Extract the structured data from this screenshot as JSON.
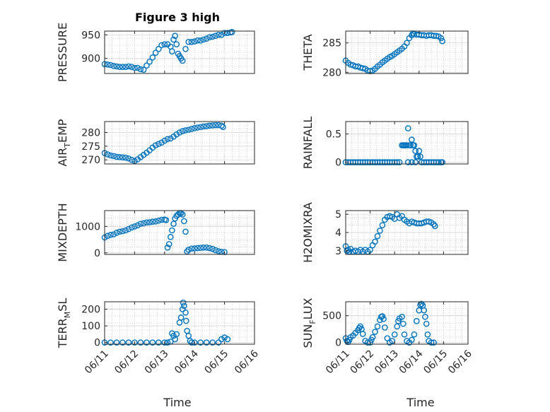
{
  "title": "Figure 3 high",
  "xlabel": "Time",
  "x_ticks": [
    "06/11",
    "06/12",
    "06/13",
    "06/14",
    "06/15",
    "06/16"
  ],
  "colors": {
    "marker": "#0072BD",
    "axis": "#262626",
    "grid": "#b0b0b0"
  },
  "chart_data": [
    {
      "type": "scatter",
      "ylabel": "PRESSURE",
      "ylim": [
        868,
        958
      ],
      "yticks": [
        900,
        950
      ],
      "points": [
        [
          0.0,
          888
        ],
        [
          0.1,
          887
        ],
        [
          0.2,
          886
        ],
        [
          0.3,
          884
        ],
        [
          0.4,
          883
        ],
        [
          0.5,
          882
        ],
        [
          0.6,
          882
        ],
        [
          0.7,
          882
        ],
        [
          0.8,
          883
        ],
        [
          0.9,
          882
        ],
        [
          1.0,
          880
        ],
        [
          1.1,
          880
        ],
        [
          1.2,
          877
        ],
        [
          1.3,
          876
        ],
        [
          1.4,
          885
        ],
        [
          1.5,
          893
        ],
        [
          1.6,
          902
        ],
        [
          1.7,
          912
        ],
        [
          1.8,
          920
        ],
        [
          1.9,
          928
        ],
        [
          2.0,
          930
        ],
        [
          2.1,
          930
        ],
        [
          2.2,
          925
        ],
        [
          2.25,
          915
        ],
        [
          2.3,
          940
        ],
        [
          2.35,
          948
        ],
        [
          2.4,
          930
        ],
        [
          2.45,
          910
        ],
        [
          2.5,
          905
        ],
        [
          2.55,
          900
        ],
        [
          2.6,
          895
        ],
        [
          2.7,
          920
        ],
        [
          2.8,
          935
        ],
        [
          2.9,
          935
        ],
        [
          3.0,
          936
        ],
        [
          3.1,
          938
        ],
        [
          3.2,
          938
        ],
        [
          3.3,
          940
        ],
        [
          3.4,
          942
        ],
        [
          3.5,
          945
        ],
        [
          3.6,
          946
        ],
        [
          3.7,
          948
        ],
        [
          3.8,
          950
        ],
        [
          3.9,
          950
        ],
        [
          4.0,
          954
        ],
        [
          4.1,
          954
        ],
        [
          4.2,
          955
        ],
        [
          4.25,
          956
        ]
      ]
    },
    {
      "type": "scatter",
      "ylabel": "THETA",
      "ylim": [
        279.8,
        287
      ],
      "yticks": [
        280,
        285
      ],
      "points": [
        [
          0.0,
          282.0
        ],
        [
          0.1,
          281.6
        ],
        [
          0.2,
          281.3
        ],
        [
          0.3,
          281.2
        ],
        [
          0.4,
          281.0
        ],
        [
          0.5,
          281.0
        ],
        [
          0.6,
          280.8
        ],
        [
          0.7,
          280.7
        ],
        [
          0.8,
          280.6
        ],
        [
          0.9,
          280.3
        ],
        [
          1.0,
          280.2
        ],
        [
          1.1,
          280.3
        ],
        [
          1.2,
          280.6
        ],
        [
          1.3,
          281.0
        ],
        [
          1.4,
          281.3
        ],
        [
          1.5,
          281.7
        ],
        [
          1.6,
          282.0
        ],
        [
          1.7,
          282.3
        ],
        [
          1.8,
          282.6
        ],
        [
          1.9,
          282.8
        ],
        [
          2.0,
          283.1
        ],
        [
          2.1,
          283.4
        ],
        [
          2.2,
          283.7
        ],
        [
          2.3,
          284.0
        ],
        [
          2.4,
          284.4
        ],
        [
          2.5,
          285.0
        ],
        [
          2.6,
          285.8
        ],
        [
          2.7,
          286.3
        ],
        [
          2.75,
          286.6
        ],
        [
          2.8,
          286.5
        ],
        [
          2.9,
          286.4
        ],
        [
          3.0,
          286.4
        ],
        [
          3.1,
          286.3
        ],
        [
          3.2,
          286.3
        ],
        [
          3.3,
          286.2
        ],
        [
          3.4,
          286.3
        ],
        [
          3.5,
          286.3
        ],
        [
          3.6,
          286.2
        ],
        [
          3.7,
          286.2
        ],
        [
          3.8,
          286.1
        ],
        [
          3.9,
          285.8
        ],
        [
          3.95,
          285.3
        ]
      ]
    },
    {
      "type": "scatter",
      "ylabel": "AIR_TEMP",
      "ylim": [
        268.5,
        284
      ],
      "yticks": [
        270,
        275,
        280
      ],
      "points": [
        [
          0.0,
          272.5
        ],
        [
          0.1,
          272.0
        ],
        [
          0.2,
          271.6
        ],
        [
          0.3,
          271.4
        ],
        [
          0.4,
          271.1
        ],
        [
          0.5,
          271.0
        ],
        [
          0.6,
          270.9
        ],
        [
          0.7,
          270.8
        ],
        [
          0.8,
          270.5
        ],
        [
          0.9,
          270.0
        ],
        [
          1.0,
          269.6
        ],
        [
          1.1,
          270.2
        ],
        [
          1.2,
          271.0
        ],
        [
          1.3,
          271.8
        ],
        [
          1.4,
          272.6
        ],
        [
          1.5,
          273.5
        ],
        [
          1.6,
          274.5
        ],
        [
          1.7,
          275.3
        ],
        [
          1.8,
          275.8
        ],
        [
          1.9,
          276.3
        ],
        [
          2.0,
          277.0
        ],
        [
          2.1,
          277.6
        ],
        [
          2.2,
          277.8
        ],
        [
          2.3,
          278.5
        ],
        [
          2.4,
          279.3
        ],
        [
          2.5,
          280.0
        ],
        [
          2.6,
          280.5
        ],
        [
          2.7,
          280.8
        ],
        [
          2.8,
          281.0
        ],
        [
          2.9,
          281.3
        ],
        [
          3.0,
          281.6
        ],
        [
          3.1,
          281.8
        ],
        [
          3.2,
          282.0
        ],
        [
          3.3,
          282.2
        ],
        [
          3.4,
          282.3
        ],
        [
          3.5,
          282.5
        ],
        [
          3.6,
          282.6
        ],
        [
          3.7,
          282.7
        ],
        [
          3.8,
          282.7
        ],
        [
          3.9,
          282.5
        ],
        [
          3.95,
          282.0
        ]
      ]
    },
    {
      "type": "scatter",
      "ylabel": "RAINFALL",
      "ylim": [
        -0.03,
        0.72
      ],
      "yticks": [
        0,
        0.5
      ],
      "points": [
        [
          0.0,
          0
        ],
        [
          0.1,
          0
        ],
        [
          0.2,
          0
        ],
        [
          0.3,
          0
        ],
        [
          0.4,
          0
        ],
        [
          0.5,
          0
        ],
        [
          0.6,
          0
        ],
        [
          0.7,
          0
        ],
        [
          0.8,
          0
        ],
        [
          0.9,
          0
        ],
        [
          1.0,
          0
        ],
        [
          1.1,
          0
        ],
        [
          1.2,
          0
        ],
        [
          1.3,
          0
        ],
        [
          1.4,
          0
        ],
        [
          1.5,
          0
        ],
        [
          1.6,
          0
        ],
        [
          1.7,
          0
        ],
        [
          1.8,
          0
        ],
        [
          1.9,
          0
        ],
        [
          2.0,
          0
        ],
        [
          2.1,
          0
        ],
        [
          2.2,
          0
        ],
        [
          2.3,
          0.3
        ],
        [
          2.35,
          0.3
        ],
        [
          2.4,
          0.3
        ],
        [
          2.45,
          0.3
        ],
        [
          2.5,
          0.3
        ],
        [
          2.55,
          0.6
        ],
        [
          2.6,
          0.3
        ],
        [
          2.65,
          0.3
        ],
        [
          2.7,
          0.4
        ],
        [
          2.75,
          0.3
        ],
        [
          2.8,
          0.3
        ],
        [
          2.85,
          0.2
        ],
        [
          2.9,
          0.1
        ],
        [
          2.95,
          0.1
        ],
        [
          3.0,
          0.2
        ],
        [
          3.05,
          0.1
        ],
        [
          3.1,
          0
        ],
        [
          2.55,
          0
        ],
        [
          2.7,
          0
        ],
        [
          2.85,
          0
        ],
        [
          3.2,
          0
        ],
        [
          3.3,
          0
        ],
        [
          3.4,
          0
        ],
        [
          3.5,
          0
        ],
        [
          3.6,
          0
        ],
        [
          3.7,
          0
        ],
        [
          3.8,
          0
        ],
        [
          3.9,
          0
        ],
        [
          3.95,
          0
        ]
      ]
    },
    {
      "type": "scatter",
      "ylabel": "MIXDEPTH",
      "ylim": [
        -60,
        1600
      ],
      "yticks": [
        0,
        1000
      ],
      "points": [
        [
          0.0,
          580
        ],
        [
          0.1,
          640
        ],
        [
          0.2,
          680
        ],
        [
          0.3,
          700
        ],
        [
          0.4,
          760
        ],
        [
          0.5,
          800
        ],
        [
          0.6,
          820
        ],
        [
          0.7,
          850
        ],
        [
          0.8,
          900
        ],
        [
          0.9,
          960
        ],
        [
          1.0,
          1000
        ],
        [
          1.1,
          1040
        ],
        [
          1.2,
          1100
        ],
        [
          1.3,
          1120
        ],
        [
          1.4,
          1150
        ],
        [
          1.5,
          1160
        ],
        [
          1.6,
          1180
        ],
        [
          1.7,
          1190
        ],
        [
          1.8,
          1220
        ],
        [
          1.9,
          1250
        ],
        [
          2.0,
          1260
        ],
        [
          2.05,
          1240
        ],
        [
          2.1,
          200
        ],
        [
          2.15,
          330
        ],
        [
          2.2,
          600
        ],
        [
          2.25,
          850
        ],
        [
          2.3,
          1100
        ],
        [
          2.35,
          1300
        ],
        [
          2.4,
          1400
        ],
        [
          2.45,
          1450
        ],
        [
          2.5,
          1500
        ],
        [
          2.55,
          1500
        ],
        [
          2.6,
          1450
        ],
        [
          2.65,
          1200
        ],
        [
          2.7,
          800
        ],
        [
          2.75,
          50
        ],
        [
          2.8,
          120
        ],
        [
          2.9,
          160
        ],
        [
          3.0,
          170
        ],
        [
          3.1,
          180
        ],
        [
          3.2,
          190
        ],
        [
          3.3,
          200
        ],
        [
          3.4,
          200
        ],
        [
          3.5,
          180
        ],
        [
          3.6,
          150
        ],
        [
          3.7,
          100
        ],
        [
          3.8,
          60
        ],
        [
          3.9,
          40
        ],
        [
          4.0,
          30
        ]
      ]
    },
    {
      "type": "scatter",
      "ylabel": "H2OMIXRA",
      "ylim": [
        2.8,
        5.2
      ],
      "yticks": [
        3,
        4,
        5
      ],
      "points": [
        [
          0.0,
          3.25
        ],
        [
          0.05,
          3.0
        ],
        [
          0.1,
          3.05
        ],
        [
          0.15,
          2.95
        ],
        [
          0.2,
          3.1
        ],
        [
          0.3,
          2.95
        ],
        [
          0.4,
          3.0
        ],
        [
          0.5,
          2.95
        ],
        [
          0.6,
          3.05
        ],
        [
          0.7,
          2.95
        ],
        [
          0.8,
          3.05
        ],
        [
          0.9,
          2.95
        ],
        [
          1.0,
          3.05
        ],
        [
          1.1,
          3.3
        ],
        [
          1.2,
          3.5
        ],
        [
          1.3,
          3.8
        ],
        [
          1.4,
          4.1
        ],
        [
          1.5,
          4.4
        ],
        [
          1.6,
          4.7
        ],
        [
          1.7,
          4.85
        ],
        [
          1.8,
          4.9
        ],
        [
          1.9,
          4.85
        ],
        [
          2.0,
          4.75
        ],
        [
          2.1,
          5.0
        ],
        [
          2.2,
          4.8
        ],
        [
          2.3,
          4.9
        ],
        [
          2.4,
          4.7
        ],
        [
          2.5,
          4.6
        ],
        [
          2.6,
          4.5
        ],
        [
          2.7,
          4.6
        ],
        [
          2.8,
          4.55
        ],
        [
          2.9,
          4.5
        ],
        [
          3.0,
          4.5
        ],
        [
          3.1,
          4.5
        ],
        [
          3.2,
          4.55
        ],
        [
          3.3,
          4.6
        ],
        [
          3.4,
          4.6
        ],
        [
          3.5,
          4.55
        ],
        [
          3.6,
          4.45
        ],
        [
          3.65,
          4.35
        ]
      ]
    },
    {
      "type": "scatter",
      "ylabel": "TERR_MSL",
      "ylim": [
        -10,
        245
      ],
      "yticks": [
        0,
        100,
        200
      ],
      "points": [
        [
          0.0,
          0
        ],
        [
          0.2,
          0
        ],
        [
          0.4,
          0
        ],
        [
          0.6,
          0
        ],
        [
          0.8,
          0
        ],
        [
          1.0,
          0
        ],
        [
          1.2,
          0
        ],
        [
          1.4,
          0
        ],
        [
          1.6,
          0
        ],
        [
          1.8,
          0
        ],
        [
          2.0,
          0
        ],
        [
          2.1,
          0
        ],
        [
          2.2,
          5
        ],
        [
          2.25,
          55
        ],
        [
          2.3,
          40
        ],
        [
          2.35,
          20
        ],
        [
          2.4,
          50
        ],
        [
          2.5,
          120
        ],
        [
          2.55,
          150
        ],
        [
          2.6,
          200
        ],
        [
          2.62,
          240
        ],
        [
          2.65,
          220
        ],
        [
          2.7,
          180
        ],
        [
          2.72,
          130
        ],
        [
          2.75,
          70
        ],
        [
          2.8,
          40
        ],
        [
          2.85,
          10
        ],
        [
          2.9,
          0
        ],
        [
          3.0,
          0
        ],
        [
          3.2,
          0
        ],
        [
          3.4,
          0
        ],
        [
          3.6,
          0
        ],
        [
          3.8,
          0
        ],
        [
          3.9,
          20
        ],
        [
          4.0,
          30
        ],
        [
          4.1,
          20
        ]
      ]
    },
    {
      "type": "scatter",
      "ylabel": "SUN_FLUX",
      "ylim": [
        -30,
        760
      ],
      "yticks": [
        0,
        500
      ],
      "points": [
        [
          0.0,
          80
        ],
        [
          0.05,
          30
        ],
        [
          0.1,
          10
        ],
        [
          0.15,
          50
        ],
        [
          0.2,
          100
        ],
        [
          0.3,
          130
        ],
        [
          0.4,
          180
        ],
        [
          0.5,
          230
        ],
        [
          0.55,
          270
        ],
        [
          0.6,
          300
        ],
        [
          0.65,
          250
        ],
        [
          0.7,
          160
        ],
        [
          0.8,
          30
        ],
        [
          0.9,
          0
        ],
        [
          1.0,
          0
        ],
        [
          1.05,
          50
        ],
        [
          1.1,
          100
        ],
        [
          1.2,
          200
        ],
        [
          1.3,
          300
        ],
        [
          1.4,
          420
        ],
        [
          1.45,
          480
        ],
        [
          1.5,
          490
        ],
        [
          1.55,
          440
        ],
        [
          1.6,
          280
        ],
        [
          1.7,
          80
        ],
        [
          1.8,
          0
        ],
        [
          1.9,
          30
        ],
        [
          2.0,
          150
        ],
        [
          2.1,
          300
        ],
        [
          2.15,
          400
        ],
        [
          2.2,
          450
        ],
        [
          2.3,
          480
        ],
        [
          2.35,
          350
        ],
        [
          2.4,
          150
        ],
        [
          2.5,
          30
        ],
        [
          2.6,
          0
        ],
        [
          2.7,
          50
        ],
        [
          2.8,
          150
        ],
        [
          2.9,
          400
        ],
        [
          3.0,
          600
        ],
        [
          3.05,
          700
        ],
        [
          3.1,
          720
        ],
        [
          3.15,
          690
        ],
        [
          3.2,
          600
        ],
        [
          3.25,
          480
        ],
        [
          3.3,
          350
        ],
        [
          3.35,
          150
        ],
        [
          3.4,
          30
        ],
        [
          3.5,
          0
        ],
        [
          3.6,
          0
        ]
      ]
    }
  ]
}
